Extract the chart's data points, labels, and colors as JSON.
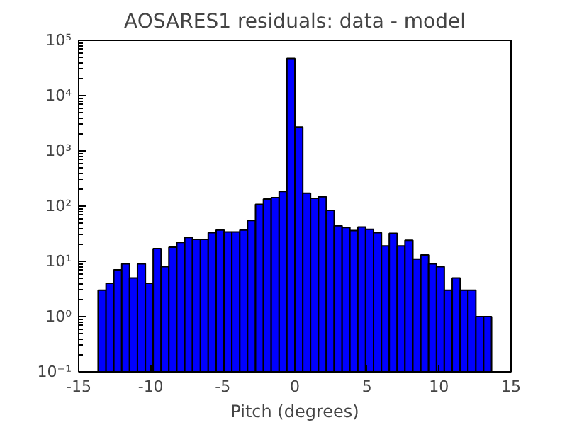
{
  "chart_data": {
    "type": "histogram",
    "title": "AOSARES1 residuals: data - model",
    "xlabel": "Pitch (degrees)",
    "bins": [
      -13.65,
      -13.1,
      -12.56,
      -12.01,
      -11.47,
      -10.92,
      -10.37,
      -9.83,
      -9.28,
      -8.74,
      -8.19,
      -7.64,
      -7.1,
      -6.55,
      -6.01,
      -5.46,
      -4.91,
      -4.37,
      -3.82,
      -3.28,
      -2.73,
      -2.18,
      -1.64,
      -1.09,
      -0.55,
      0.0,
      0.55,
      1.09,
      1.64,
      2.18,
      2.73,
      3.28,
      3.82,
      4.37,
      4.91,
      5.46,
      6.01,
      6.55,
      7.1,
      7.64,
      8.19,
      8.74,
      9.28,
      9.83,
      10.37,
      10.92,
      11.47,
      12.01,
      12.56,
      13.1,
      13.65
    ],
    "values": [
      3,
      4,
      7,
      9,
      5,
      9,
      4,
      17,
      8,
      18,
      22,
      27,
      25,
      25,
      33,
      37,
      34,
      34,
      37,
      55,
      108,
      134,
      142,
      184,
      47000,
      2700,
      172,
      138,
      148,
      84,
      44,
      41,
      36,
      42,
      38,
      33,
      19,
      32,
      19,
      24,
      11,
      13,
      9,
      8,
      3,
      5,
      3,
      3,
      1,
      1
    ],
    "color": "#0000ff",
    "log": true,
    "grid": false,
    "xlim": [
      -15,
      15
    ],
    "xticks": [
      -15,
      -10,
      -5,
      0,
      5,
      10,
      15
    ],
    "ylim": [
      0.1,
      100000
    ],
    "yticks": [
      {
        "value": 0.1,
        "label": "10⁻¹"
      },
      {
        "value": 1,
        "label": "10⁰"
      },
      {
        "value": 10,
        "label": "10¹"
      },
      {
        "value": 100,
        "label": "10²"
      },
      {
        "value": 1000,
        "label": "10³"
      },
      {
        "value": 10000,
        "label": "10⁴"
      },
      {
        "value": 100000,
        "label": "10⁵"
      }
    ]
  }
}
